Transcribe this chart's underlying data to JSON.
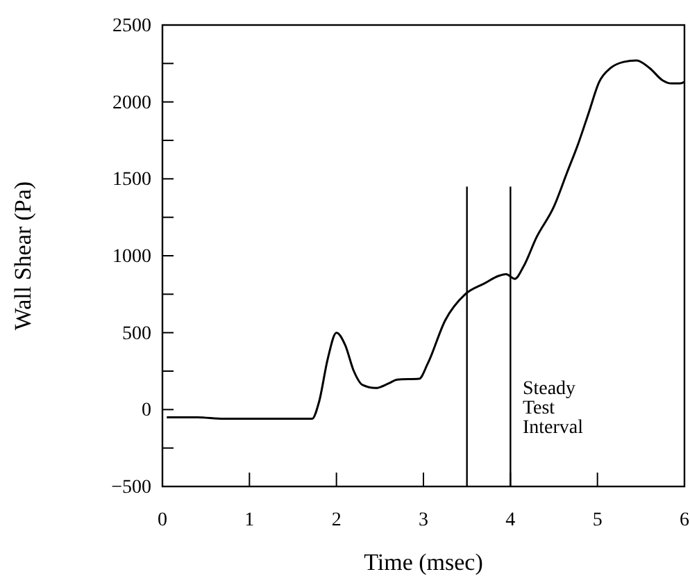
{
  "chart_data": {
    "type": "line",
    "xlabel": "Time (msec)",
    "ylabel": "Wall Shear (Pa)",
    "xlim": [
      0,
      6
    ],
    "ylim": [
      -500,
      2500
    ],
    "xticks": [
      0,
      1,
      2,
      3,
      4,
      5,
      6
    ],
    "yticks": [
      -500,
      {
        "value": -250,
        "label": null
      },
      0,
      {
        "value": 250,
        "label": null
      },
      500,
      {
        "value": 750,
        "label": null
      },
      1000,
      {
        "value": 1250,
        "label": null
      },
      1500,
      {
        "value": 1750,
        "label": null
      },
      2000,
      {
        "value": 2250,
        "label": null
      },
      2500
    ],
    "grid": false,
    "series": [
      {
        "color": "#000000",
        "x": [
          0.05,
          0.4,
          0.7,
          1.2,
          1.6,
          1.72,
          1.8,
          1.9,
          2.0,
          2.1,
          2.2,
          2.3,
          2.45,
          2.6,
          2.7,
          2.95,
          3.05,
          3.25,
          3.48,
          3.7,
          3.87,
          3.95,
          4.05,
          4.15,
          4.3,
          4.5,
          4.65,
          4.78,
          4.9,
          5.02,
          5.15,
          5.3,
          5.45,
          5.6,
          5.75,
          5.85,
          5.95,
          6.0
        ],
        "values": [
          -50,
          -50,
          -60,
          -60,
          -60,
          -60,
          50,
          330,
          500,
          420,
          250,
          160,
          140,
          170,
          195,
          200,
          300,
          580,
          750,
          820,
          870,
          880,
          850,
          930,
          1120,
          1320,
          1540,
          1730,
          1930,
          2130,
          2220,
          2260,
          2270,
          2220,
          2140,
          2120,
          2120,
          2130
        ]
      }
    ],
    "ref_lines": [
      {
        "axis": "x",
        "value": 3.5,
        "color": "#000000"
      },
      {
        "axis": "x",
        "value": 4.0,
        "color": "#000000"
      }
    ],
    "annotations": [
      "Steady\nTest\nInterval"
    ]
  }
}
